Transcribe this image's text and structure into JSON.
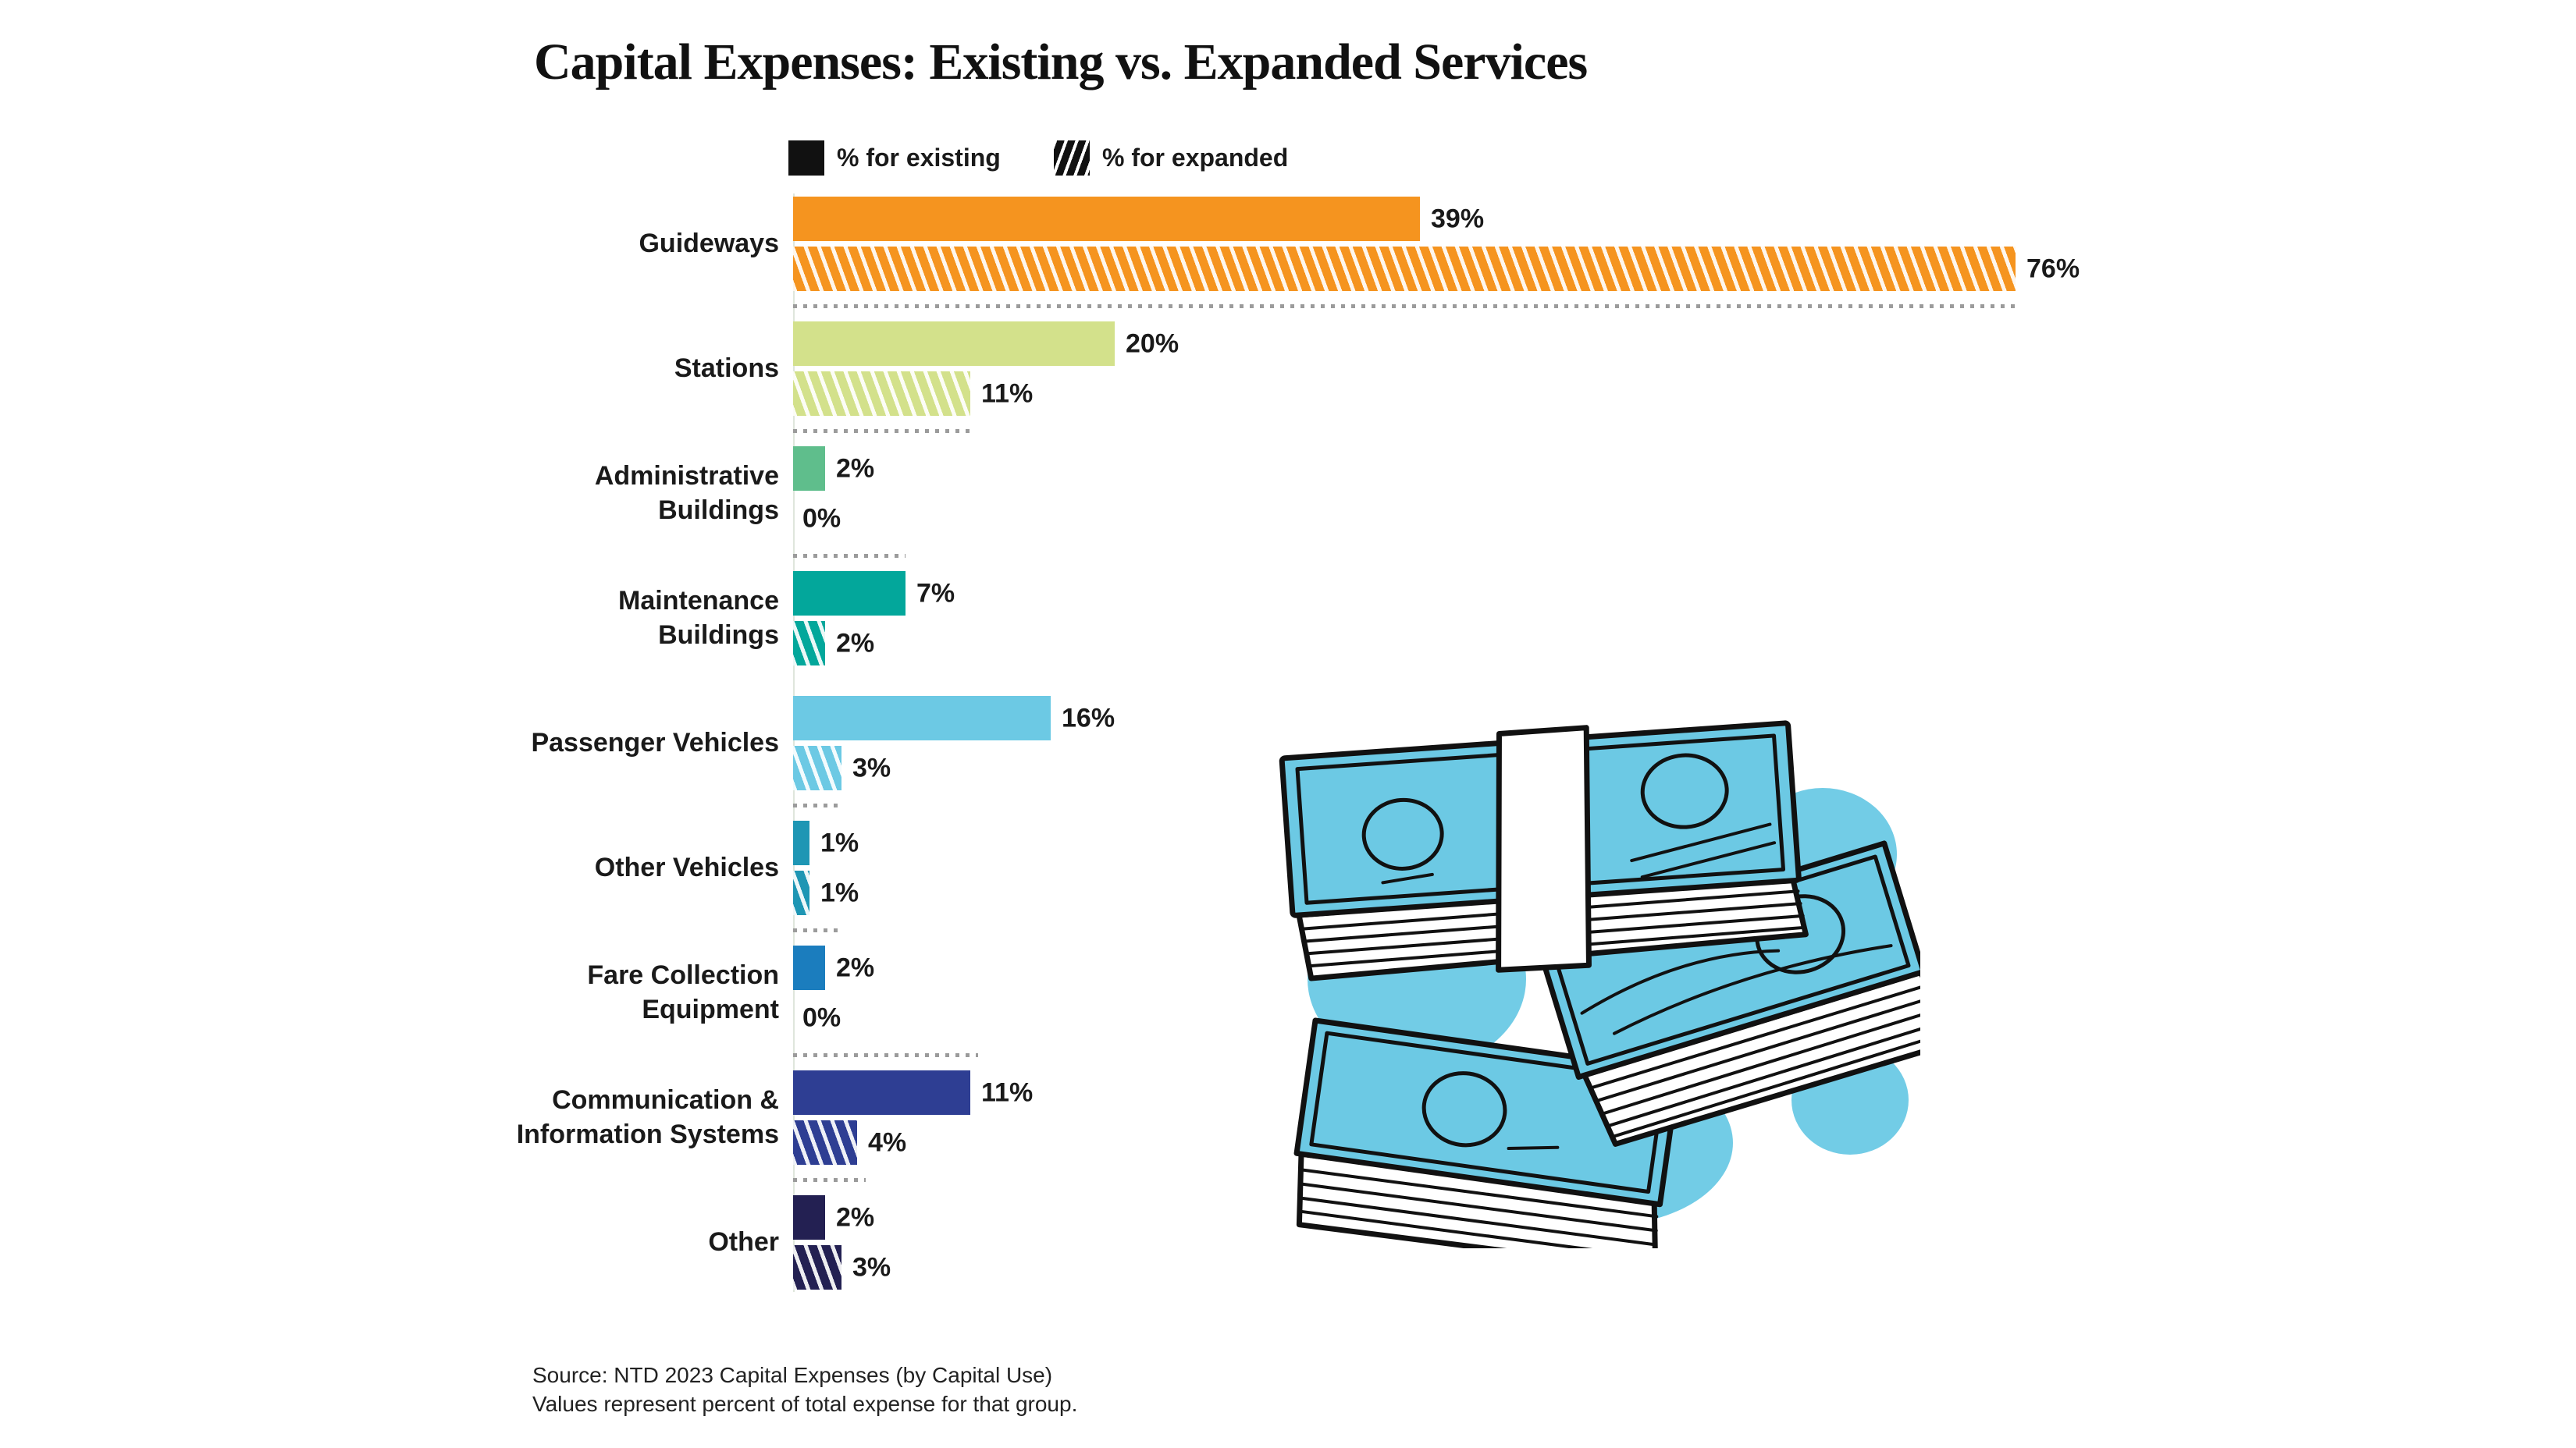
{
  "title": "Capital Expenses: Existing vs. Expanded Services",
  "legend": {
    "existing": "% for existing",
    "expanded": "% for expanded"
  },
  "source": {
    "line1": "Source: NTD 2023 Capital Expenses (by Capital Use)",
    "line2": "Values represent percent of total expense for that group."
  },
  "palette": {
    "text": "#1A1A1A",
    "legend_swatch": "#111111",
    "hatch_line": "#FFFFFF",
    "separator_dots": "#9B9B9B",
    "axis_line": "#DFE6DC",
    "illustration_cyan": "#6CC9E4",
    "illustration_ink": "#111111"
  },
  "chart_data": {
    "type": "bar",
    "orientation": "horizontal",
    "unit": "percent",
    "xlim": [
      0,
      100
    ],
    "grid": false,
    "legend_position": "top",
    "series": [
      {
        "name": "% for existing",
        "pattern": "solid"
      },
      {
        "name": "% for expanded",
        "pattern": "diagonal-hatch"
      }
    ],
    "categories": [
      "Guideways",
      "Stations",
      "Administrative Buildings",
      "Maintenance Buildings",
      "Passenger Vehicles",
      "Other Vehicles",
      "Fare Collection Equipment",
      "Communication & Information Systems",
      "Other"
    ],
    "groups": [
      {
        "label_lines": [
          "Guideways"
        ],
        "existing": 39,
        "expanded": 76,
        "color": "#F5941F",
        "separator_after_pct": 76
      },
      {
        "label_lines": [
          "Stations"
        ],
        "existing": 20,
        "expanded": 11,
        "color": "#D3E18B",
        "separator_after_pct": 11
      },
      {
        "label_lines": [
          "Administrative",
          "Buildings"
        ],
        "existing": 2,
        "expanded": 0,
        "color": "#5FBE8C",
        "separator_after_pct": 7
      },
      {
        "label_lines": [
          "Maintenance",
          "Buildings"
        ],
        "existing": 7,
        "expanded": 2,
        "color": "#03A79B",
        "separator_after_pct": null
      },
      {
        "label_lines": [
          "Passenger Vehicles"
        ],
        "existing": 16,
        "expanded": 3,
        "color": "#6CC9E4",
        "separator_after_pct": 3
      },
      {
        "label_lines": [
          "Other Vehicles"
        ],
        "existing": 1,
        "expanded": 1,
        "color": "#1E96B4",
        "separator_after_pct": 3
      },
      {
        "label_lines": [
          "Fare Collection",
          "Equipment"
        ],
        "existing": 2,
        "expanded": 0,
        "color": "#1B7DBE",
        "separator_after_pct": 11.5
      },
      {
        "label_lines": [
          "Communication &",
          "Information Systems"
        ],
        "existing": 11,
        "expanded": 4,
        "color": "#2E3E93",
        "separator_after_pct": 4.5
      },
      {
        "label_lines": [
          "Other"
        ],
        "existing": 2,
        "expanded": 3,
        "color": "#232052",
        "separator_after_pct": null
      }
    ]
  }
}
